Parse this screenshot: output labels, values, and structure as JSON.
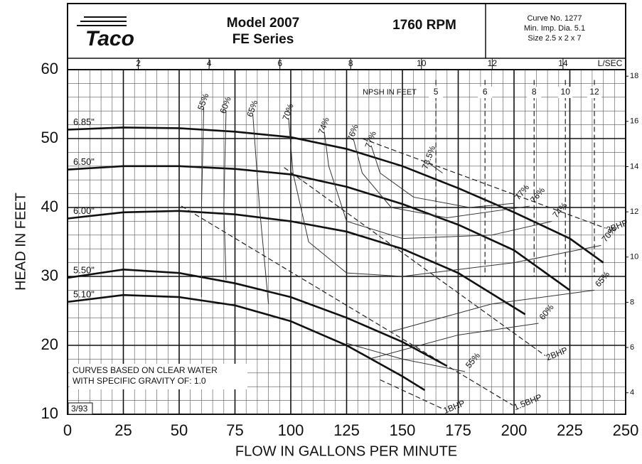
{
  "header": {
    "logo": "Taco",
    "model": "Model 2007",
    "series": "FE Series",
    "rpm": "1760 RPM",
    "curve_no": "Curve No. 1277",
    "min_imp": "Min. Imp. Dia. 5.1",
    "size": "Size 2.5 x 2 x 7"
  },
  "chart_data": {
    "type": "line",
    "x_label": "FLOW IN GALLONS PER MINUTE",
    "y_label": "HEAD IN FEET",
    "xlim": [
      0,
      250
    ],
    "xticks": [
      0,
      25,
      50,
      75,
      100,
      125,
      150,
      175,
      200,
      225,
      250
    ],
    "ylim": [
      10,
      60
    ],
    "yticks": [
      10,
      20,
      30,
      40,
      50,
      60
    ],
    "x2_label": "L/SEC",
    "x2lim": [
      0,
      15.77
    ],
    "x2ticks": [
      2,
      4,
      6,
      8,
      10,
      12,
      14
    ],
    "y2lim": [
      3.048,
      18.288
    ],
    "y2ticks": [
      4,
      6,
      8,
      10,
      12,
      14,
      16,
      18
    ],
    "grid": true,
    "minor_grid": {
      "x": 5,
      "y": 2
    },
    "series": [
      {
        "name": "6.85\"",
        "color": "#111111",
        "x": [
          0,
          25,
          50,
          75,
          100,
          125,
          150,
          175,
          200,
          225,
          240
        ],
        "values": [
          51.3,
          51.6,
          51.5,
          51,
          50.2,
          48.5,
          46,
          42.8,
          39.3,
          35.5,
          32
        ]
      },
      {
        "name": "6.50\"",
        "color": "#111111",
        "x": [
          0,
          25,
          50,
          75,
          100,
          125,
          150,
          175,
          200,
          225
        ],
        "values": [
          45.5,
          46,
          46,
          45.6,
          44.8,
          43,
          40.5,
          37.5,
          33.8,
          28
        ]
      },
      {
        "name": "6.00\"",
        "color": "#111111",
        "x": [
          0,
          25,
          50,
          75,
          100,
          125,
          150,
          175,
          205
        ],
        "values": [
          38.4,
          39.3,
          39.5,
          39,
          38,
          36.5,
          34,
          30.5,
          24.5
        ]
      },
      {
        "name": "5.50\"",
        "color": "#111111",
        "x": [
          0,
          25,
          50,
          75,
          100,
          125,
          150,
          170
        ],
        "values": [
          29.8,
          31,
          30.5,
          29,
          27,
          24,
          20.5,
          17
        ]
      },
      {
        "name": "5.10\"",
        "color": "#111111",
        "x": [
          0,
          25,
          50,
          75,
          100,
          125,
          150,
          160
        ],
        "values": [
          26.3,
          27.3,
          27,
          25.8,
          23.5,
          20,
          15.5,
          13.5
        ]
      }
    ],
    "efficiency_lines": [
      {
        "name": "55%",
        "color": "#333333",
        "x": [
          61,
          60,
          60,
          null,
          125,
          150,
          178
        ],
        "values": [
          54.5,
          40,
          27,
          null,
          20.3,
          18,
          16.2
        ]
      },
      {
        "name": "60%",
        "color": "#333333",
        "x": [
          71,
          70,
          71,
          null,
          135,
          175,
          211
        ],
        "values": [
          54,
          40,
          29.5,
          null,
          18,
          21.5,
          23.2
        ]
      },
      {
        "name": "65%",
        "color": "#333333",
        "x": [
          83,
          86,
          90,
          null,
          145,
          190,
          236
        ],
        "values": [
          53.5,
          40,
          26,
          null,
          22,
          26,
          28
        ]
      },
      {
        "name": "70%",
        "color": "#333333",
        "x": [
          99,
          101,
          108,
          125,
          150,
          200,
          239
        ],
        "values": [
          53,
          45,
          35,
          30.5,
          30,
          32,
          34.5
        ]
      },
      {
        "name": "74%",
        "color": "#333333",
        "x": [
          115,
          117,
          125,
          150,
          190,
          217
        ],
        "values": [
          51,
          46,
          38,
          35.5,
          36,
          38
        ]
      },
      {
        "name": "76%",
        "color": "#333333",
        "x": [
          128,
          132,
          145,
          170,
          207
        ],
        "values": [
          50,
          45,
          40,
          38.5,
          40.2
        ]
      },
      {
        "name": "77%",
        "color": "#333333",
        "x": [
          136,
          140,
          155,
          180,
          200
        ],
        "values": [
          49,
          45,
          41.5,
          40,
          40.6
        ]
      },
      {
        "name": "78.5%",
        "color": "#333333",
        "x": [
          162,
          168
        ],
        "values": [
          46.4,
          45
        ]
      }
    ],
    "bhp_lines": [
      {
        "name": "1BHP",
        "color": "#222222",
        "x": [
          140,
          168
        ],
        "values": [
          15,
          10.8
        ]
      },
      {
        "name": "1.5BHP",
        "color": "#222222",
        "x": [
          51,
          199.5
        ],
        "values": [
          40.2,
          11.3
        ]
      },
      {
        "name": "2BHP",
        "color": "#222222",
        "x": [
          97,
          214
        ],
        "values": [
          45.8,
          18.5
        ]
      },
      {
        "name": "3BHP",
        "color": "#222222",
        "x": [
          132,
          241
        ],
        "values": [
          50,
          37
        ]
      }
    ],
    "npsh": {
      "label": "NPSH IN FEET",
      "values": [
        5,
        6,
        8,
        10,
        12
      ],
      "x": [
        165,
        187,
        209,
        223,
        236
      ]
    },
    "notes": [
      "CURVES BASED ON CLEAR WATER",
      "WITH SPECIFIC GRAVITY OF: 1.0"
    ],
    "date": "3/93"
  }
}
